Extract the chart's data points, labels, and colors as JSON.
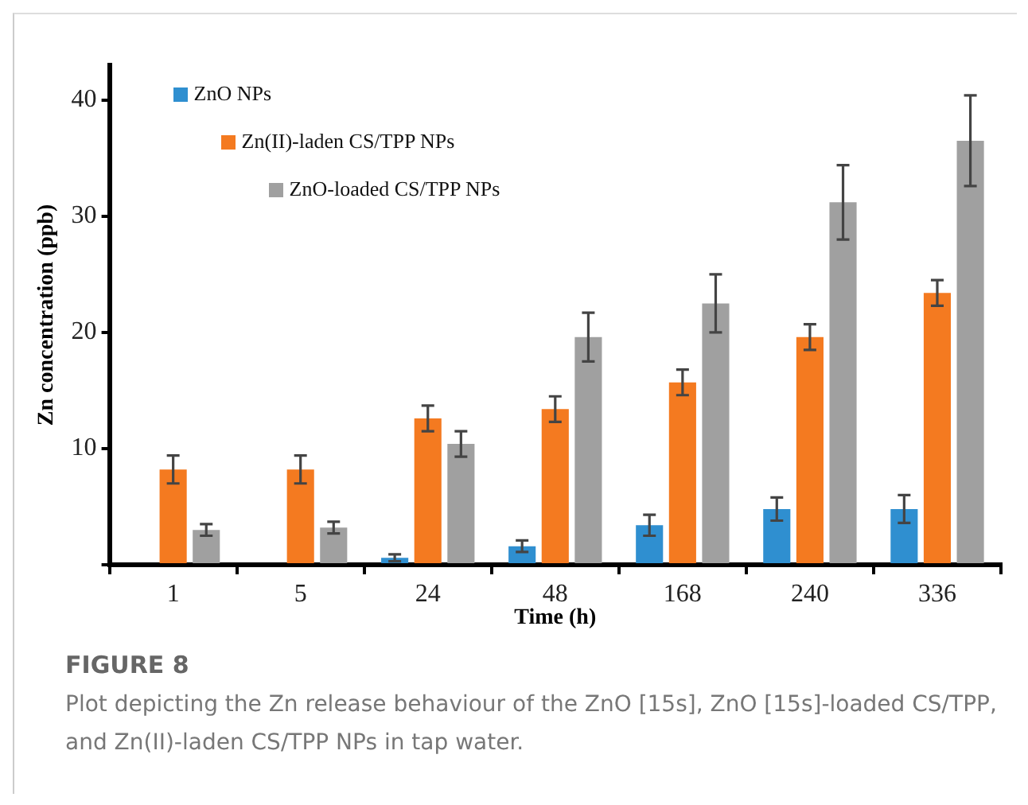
{
  "chart_data": {
    "type": "bar",
    "title": "FIGURE 8",
    "annotations": [
      "Plot depicting the Zn release behaviour of the ZnO [15s], ZnO [15s]-loaded CS/TPP, and Zn(II)-laden CS/TPP NPs in tap water."
    ],
    "xlabel": "Time (h)",
    "ylabel": "Zn concentration (ppb)",
    "categories": [
      "1",
      "5",
      "24",
      "48",
      "168",
      "240",
      "336"
    ],
    "ylim": [
      0,
      43
    ],
    "yticks": [
      {
        "value": 0,
        "label": null
      },
      10,
      20,
      30,
      40
    ],
    "legend": "top left",
    "grid": false,
    "series": [
      {
        "name": "ZnO NPs",
        "color": "#2f8fd0",
        "values": [
          null,
          null,
          0.6,
          1.6,
          3.4,
          4.8,
          4.8
        ],
        "errors": [
          null,
          null,
          0.3,
          0.5,
          0.9,
          1.0,
          1.2
        ]
      },
      {
        "name": "Zn(II)-laden CS/TPP NPs",
        "color": "#f47a20",
        "values": [
          8.2,
          8.2,
          12.6,
          13.4,
          15.7,
          19.6,
          23.4
        ],
        "errors": [
          1.2,
          1.2,
          1.1,
          1.1,
          1.1,
          1.1,
          1.1
        ]
      },
      {
        "name": "ZnO-loaded CS/TPP NPs",
        "color": "#a0a0a0",
        "values": [
          3.0,
          3.2,
          10.4,
          19.6,
          22.5,
          31.2,
          36.5
        ],
        "errors": [
          0.5,
          0.5,
          1.1,
          2.1,
          2.5,
          3.2,
          3.9
        ]
      }
    ]
  }
}
